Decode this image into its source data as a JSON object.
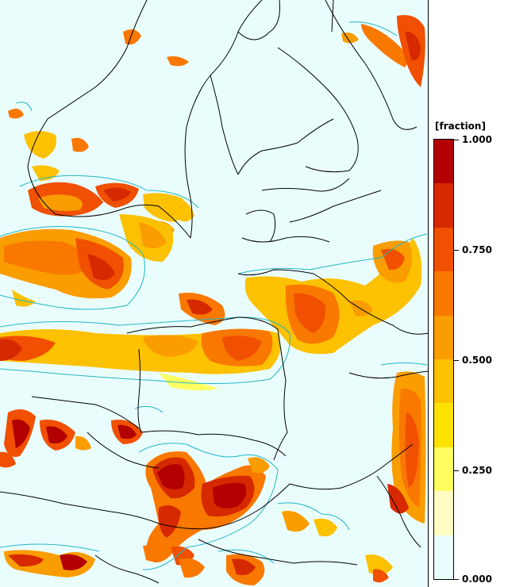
{
  "legend": {
    "title": "[fraction]",
    "labels": [
      "1.000",
      "0.750",
      "0.500",
      "0.250",
      "0.000"
    ],
    "label_values": [
      1.0,
      0.75,
      0.5,
      0.25,
      0.0
    ],
    "colors_high_to_low": [
      "#b30000",
      "#d62900",
      "#f05000",
      "#f97800",
      "#fa9d00",
      "#fcc100",
      "#fde100",
      "#fefe60",
      "#fffdc4",
      "#eafdfd"
    ]
  },
  "map": {
    "background_color": "#eafdfd",
    "contour_color": "#1fb7c7",
    "border_color": "#000000"
  }
}
